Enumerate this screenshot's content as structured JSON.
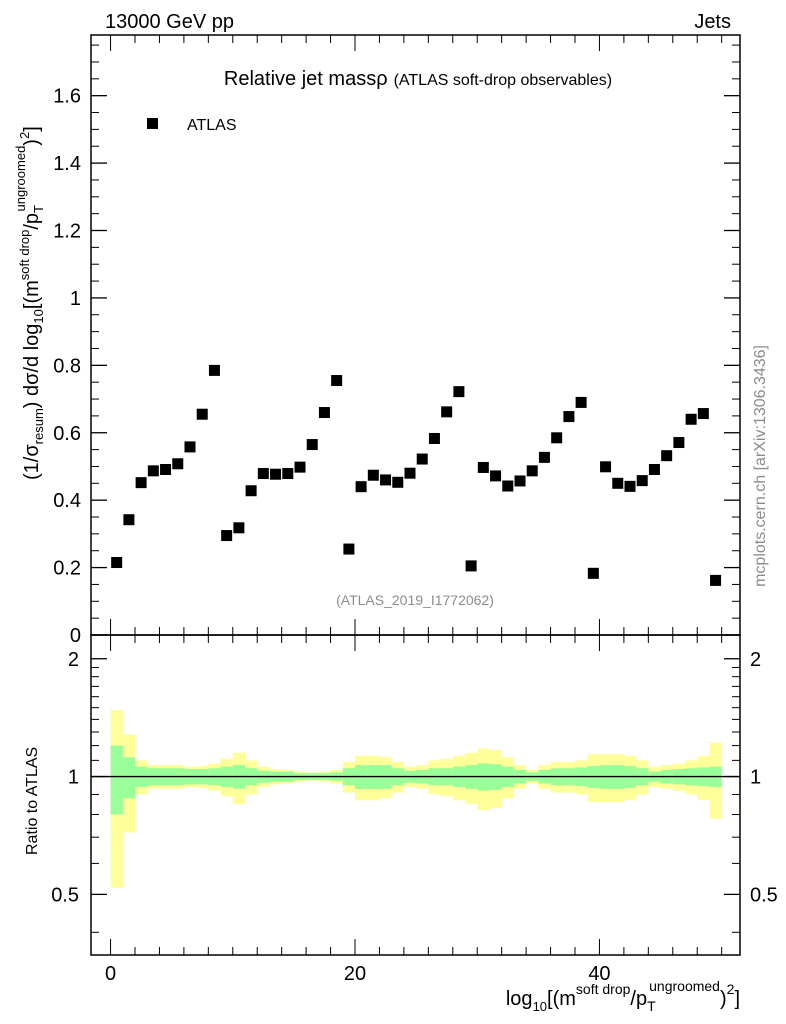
{
  "header": {
    "energy_label": "13000 GeV pp",
    "process_label": "Jets",
    "watermark": "mcplots.cern.ch [arXiv:1306.3436]"
  },
  "chart_data": {
    "type": "scatter",
    "title_main": "Relative jet mass",
    "title_rho": "ρ",
    "title_sub": "(ATLAS soft-drop observables)",
    "analysis_label": "(ATLAS_2019_I1772062)",
    "legend": [
      {
        "name": "ATLAS",
        "marker": "square",
        "color": "#000000"
      }
    ],
    "ylabel": "(1/σresum) dσ/d log10[(m^soft drop/pT^ungroomed)2]",
    "ylabel_parts": {
      "a": "(1/σ",
      "a_sub": "resum",
      "b": ") dσ/d log",
      "b_sub": "10",
      "c": "[(m",
      "c_sup": "soft drop",
      "d": "/p",
      "d_sub": "T",
      "d_sup": "ungroomed",
      "e": ")",
      "e_sup": "2",
      "f": "]"
    },
    "xlabel_parts": {
      "a": "log",
      "a_sub": "10",
      "b": "[(m",
      "b_sup": "soft drop",
      "c": "/p",
      "c_sub": "T",
      "c_sup": "ungroomed",
      "d": ")",
      "d_sup": "2",
      "e": "]"
    },
    "xlim": [
      -1.6,
      51.5
    ],
    "ylim": [
      0,
      1.78
    ],
    "x_ticks": [
      {
        "v": 0,
        "label": "0"
      },
      {
        "v": 20,
        "label": "20"
      },
      {
        "v": 40,
        "label": "40"
      }
    ],
    "y_ticks": [
      {
        "v": 0,
        "label": "0"
      },
      {
        "v": 0.2,
        "label": "0.2"
      },
      {
        "v": 0.4,
        "label": "0.4"
      },
      {
        "v": 0.6,
        "label": "0.6"
      },
      {
        "v": 0.8,
        "label": "0.8"
      },
      {
        "v": 1.0,
        "label": "1"
      },
      {
        "v": 1.2,
        "label": "1.2"
      },
      {
        "v": 1.4,
        "label": "1.4"
      },
      {
        "v": 1.6,
        "label": "1.6"
      }
    ],
    "x": [
      0.5,
      1.5,
      2.5,
      3.5,
      4.5,
      5.5,
      6.5,
      7.5,
      8.5,
      9.5,
      10.5,
      11.5,
      12.5,
      13.5,
      14.5,
      15.5,
      16.5,
      17.5,
      18.5,
      19.5,
      20.5,
      21.5,
      22.5,
      23.5,
      24.5,
      25.5,
      26.5,
      27.5,
      28.5,
      29.5,
      30.5,
      31.5,
      32.5,
      33.5,
      34.5,
      35.5,
      36.5,
      37.5,
      38.5,
      39.5,
      40.5,
      41.5,
      42.5,
      43.5,
      44.5,
      45.5,
      46.5,
      47.5,
      48.5,
      49.5
    ],
    "values": [
      0.215,
      0.342,
      0.452,
      0.487,
      0.491,
      0.508,
      0.558,
      0.655,
      0.785,
      0.295,
      0.318,
      0.428,
      0.479,
      0.477,
      0.479,
      0.498,
      0.565,
      0.66,
      0.755,
      0.255,
      0.44,
      0.474,
      0.46,
      0.453,
      0.48,
      0.522,
      0.583,
      0.662,
      0.722,
      0.205,
      0.497,
      0.472,
      0.442,
      0.457,
      0.487,
      0.527,
      0.585,
      0.648,
      0.69,
      0.183,
      0.499,
      0.45,
      0.441,
      0.458,
      0.491,
      0.532,
      0.571,
      0.64,
      0.657,
      0.162
    ],
    "ratio": {
      "ylabel": "Ratio to ATLAS",
      "ylim": [
        0.35,
        2.3
      ],
      "log_scale": true,
      "y_ticks": [
        {
          "v": 0.5,
          "label": "0.5"
        },
        {
          "v": 1,
          "label": "1"
        },
        {
          "v": 2,
          "label": "2"
        }
      ],
      "y_minor": [
        0.4,
        0.6,
        0.7,
        0.8,
        0.9,
        1.1,
        1.2,
        1.3,
        1.4,
        1.5,
        1.6,
        1.7,
        1.8,
        1.9
      ],
      "inner_band_color": "#99ff99",
      "outer_band_color": "#ffff99",
      "inner_rel": [
        0.2,
        0.12,
        0.06,
        0.05,
        0.05,
        0.05,
        0.045,
        0.045,
        0.05,
        0.06,
        0.07,
        0.05,
        0.035,
        0.03,
        0.03,
        0.02,
        0.02,
        0.02,
        0.025,
        0.05,
        0.07,
        0.07,
        0.07,
        0.05,
        0.035,
        0.04,
        0.05,
        0.05,
        0.06,
        0.07,
        0.08,
        0.075,
        0.06,
        0.04,
        0.025,
        0.04,
        0.05,
        0.05,
        0.055,
        0.065,
        0.07,
        0.07,
        0.065,
        0.05,
        0.03,
        0.04,
        0.045,
        0.05,
        0.055,
        0.06
      ],
      "outer_rel": [
        0.48,
        0.28,
        0.1,
        0.07,
        0.07,
        0.07,
        0.06,
        0.065,
        0.08,
        0.11,
        0.15,
        0.1,
        0.06,
        0.045,
        0.04,
        0.03,
        0.025,
        0.03,
        0.04,
        0.09,
        0.13,
        0.13,
        0.12,
        0.09,
        0.06,
        0.07,
        0.1,
        0.11,
        0.13,
        0.15,
        0.18,
        0.17,
        0.12,
        0.07,
        0.04,
        0.07,
        0.09,
        0.09,
        0.1,
        0.14,
        0.14,
        0.14,
        0.13,
        0.1,
        0.06,
        0.07,
        0.08,
        0.1,
        0.13,
        0.22
      ]
    }
  }
}
